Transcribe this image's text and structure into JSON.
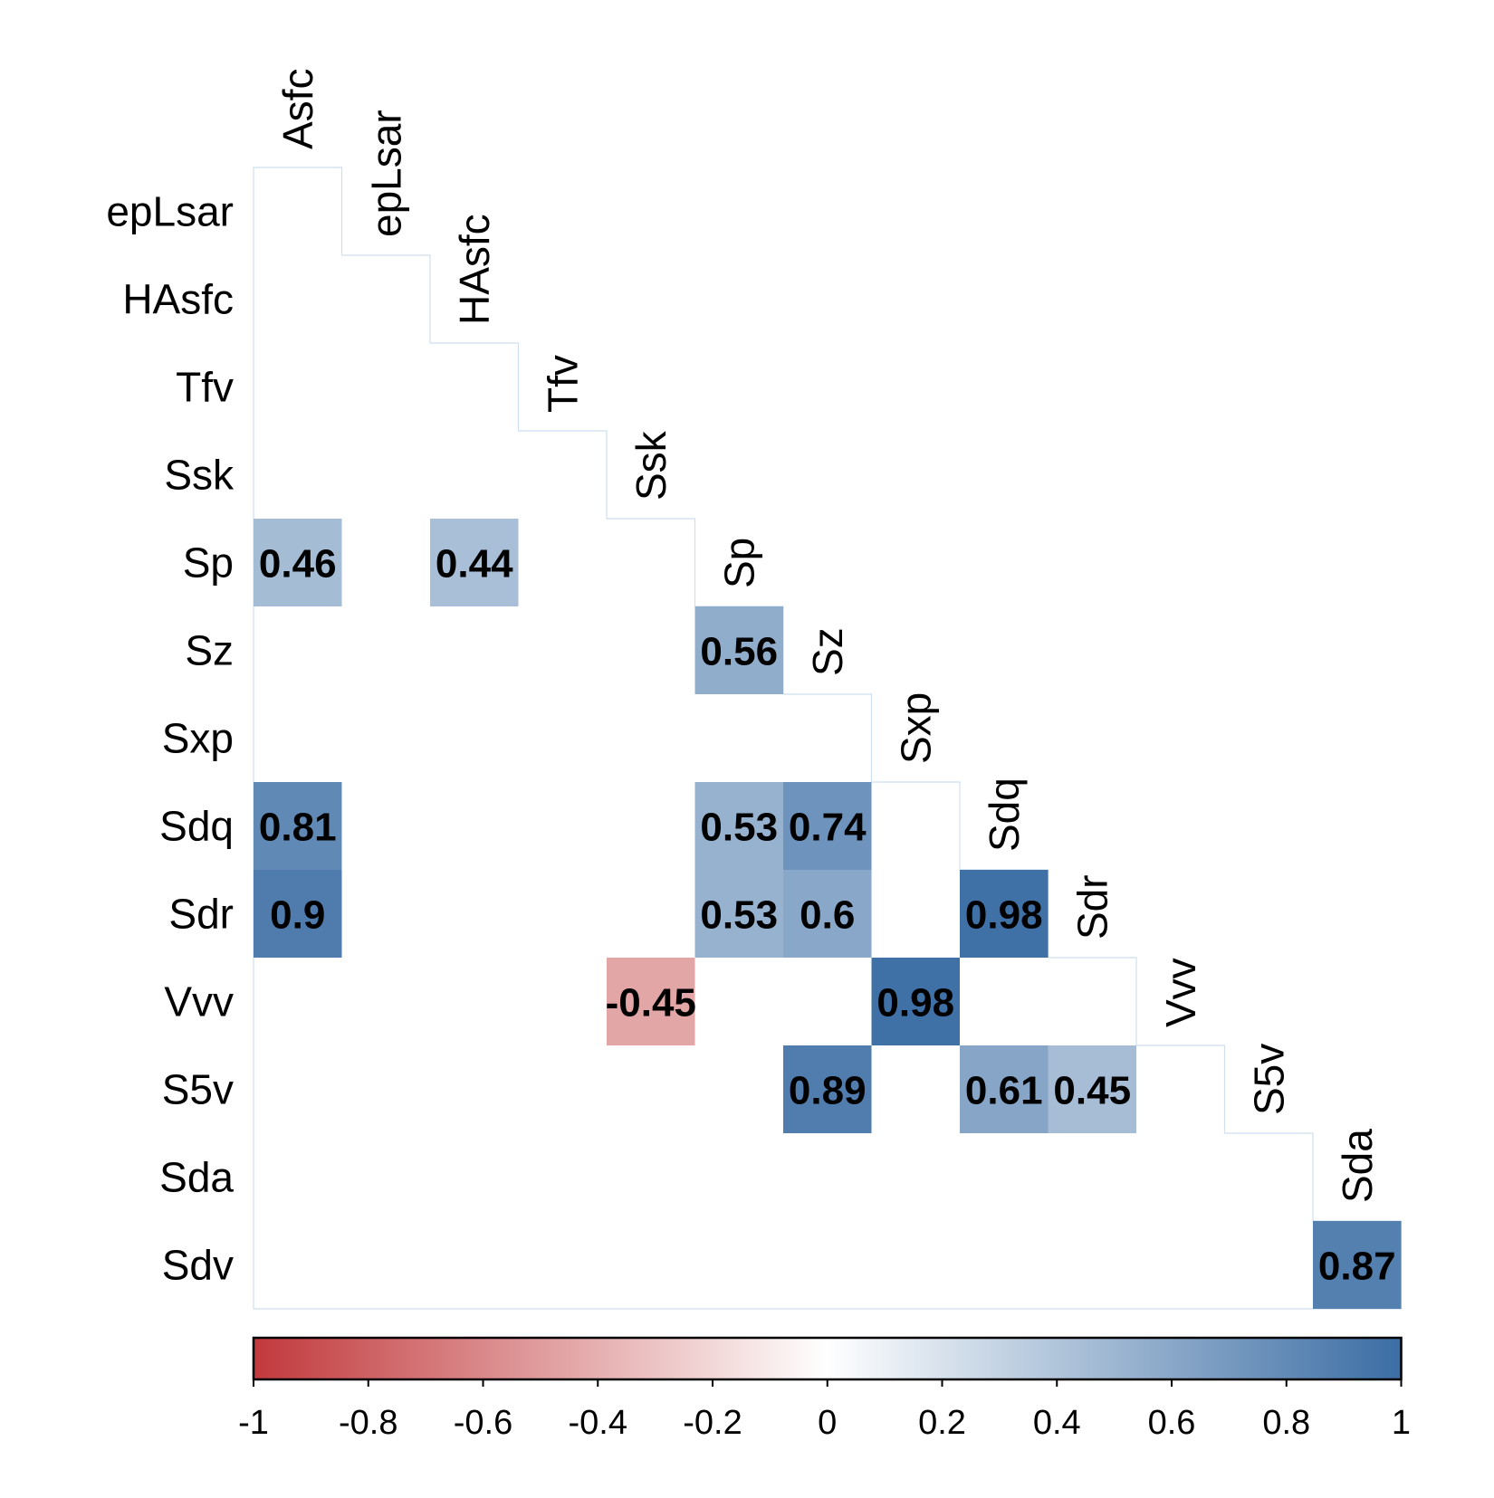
{
  "chart_data": {
    "type": "heatmap",
    "variables": [
      "Asfc",
      "epLsar",
      "HAsfc",
      "Tfv",
      "Ssk",
      "Sp",
      "Sz",
      "Sxp",
      "Sdq",
      "Sdr",
      "Vvv",
      "S5v",
      "Sda",
      "Sdv"
    ],
    "rows": [
      "epLsar",
      "HAsfc",
      "Tfv",
      "Ssk",
      "Sp",
      "Sz",
      "Sxp",
      "Sdq",
      "Sdr",
      "Vvv",
      "S5v",
      "Sda",
      "Sdv"
    ],
    "columns": [
      "Asfc",
      "epLsar",
      "HAsfc",
      "Tfv",
      "Ssk",
      "Sp",
      "Sz",
      "Sxp",
      "Sdq",
      "Sdr",
      "Vvv",
      "S5v",
      "Sda"
    ],
    "cells": [
      {
        "row": "Sp",
        "col": "Asfc",
        "value": 0.46,
        "label": "0.46"
      },
      {
        "row": "Sp",
        "col": "HAsfc",
        "value": 0.44,
        "label": "0.44"
      },
      {
        "row": "Sz",
        "col": "Sp",
        "value": 0.56,
        "label": "0.56"
      },
      {
        "row": "Sdq",
        "col": "Asfc",
        "value": 0.81,
        "label": "0.81"
      },
      {
        "row": "Sdq",
        "col": "Sp",
        "value": 0.53,
        "label": "0.53"
      },
      {
        "row": "Sdq",
        "col": "Sz",
        "value": 0.74,
        "label": "0.74"
      },
      {
        "row": "Sdr",
        "col": "Asfc",
        "value": 0.9,
        "label": "0.9"
      },
      {
        "row": "Sdr",
        "col": "Sp",
        "value": 0.53,
        "label": "0.53"
      },
      {
        "row": "Sdr",
        "col": "Sz",
        "value": 0.6,
        "label": "0.6"
      },
      {
        "row": "Sdr",
        "col": "Sdq",
        "value": 0.98,
        "label": "0.98"
      },
      {
        "row": "Vvv",
        "col": "Ssk",
        "value": -0.45,
        "label": "-0.45"
      },
      {
        "row": "Vvv",
        "col": "Sxp",
        "value": 0.98,
        "label": "0.98"
      },
      {
        "row": "S5v",
        "col": "Sz",
        "value": 0.89,
        "label": "0.89"
      },
      {
        "row": "S5v",
        "col": "Sdq",
        "value": 0.61,
        "label": "0.61"
      },
      {
        "row": "S5v",
        "col": "Sdr",
        "value": 0.45,
        "label": "0.45"
      },
      {
        "row": "Sdv",
        "col": "Sda",
        "value": 0.87,
        "label": "0.87"
      }
    ],
    "colorbar": {
      "range": [
        -1,
        1
      ],
      "ticks": [
        "-1",
        "-0.8",
        "-0.6",
        "-0.4",
        "-0.2",
        "0",
        "0.2",
        "0.4",
        "0.6",
        "0.8",
        "1"
      ],
      "colors": {
        "negative": "#c1393c",
        "neutral": "#ffffff",
        "positive": "#3b6da4"
      }
    },
    "lower_triangle_only": true,
    "legend": "bottom"
  }
}
